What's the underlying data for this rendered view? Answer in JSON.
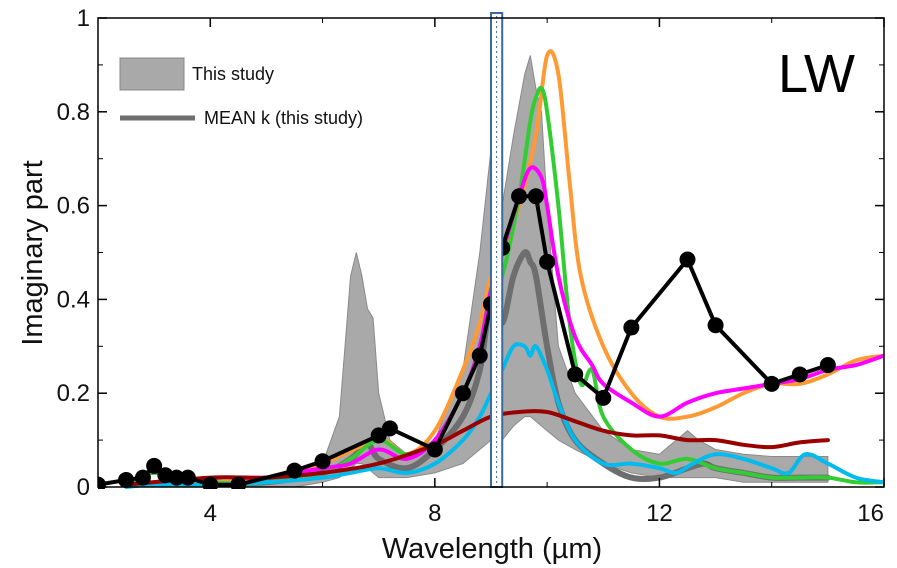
{
  "chart_data": {
    "type": "line",
    "corner_label": "LW",
    "xlabel": "Wavelength (µm)",
    "ylabel": "Imaginary part",
    "xlim": [
      2,
      16
    ],
    "ylim": [
      0,
      1
    ],
    "x_ticks": [
      4,
      8,
      12,
      16
    ],
    "y_ticks": [
      0,
      0.2,
      0.4,
      0.6,
      0.8,
      1
    ],
    "y_tick_labels": [
      "0",
      "0.2",
      "0.4",
      "0.6",
      "0.8",
      "1"
    ],
    "grid": false,
    "legend_position": "top-left",
    "legend": [
      {
        "label": "This study",
        "kind": "band",
        "color": "#a9a9a9"
      },
      {
        "label": "MEAN k (this study)",
        "kind": "line",
        "color": "#6e6e6e"
      }
    ],
    "highlight_band": {
      "x": [
        9.0,
        9.2
      ],
      "color": "#3d6a9e"
    },
    "range_band": {
      "name": "This study",
      "color": "#a9a9a9",
      "x": [
        2.5,
        3,
        4,
        5,
        5.5,
        6,
        6.3,
        6.5,
        6.6,
        6.7,
        6.8,
        6.9,
        7,
        7.2,
        7.5,
        8,
        8.5,
        8.8,
        9,
        9.2,
        9.4,
        9.6,
        9.7,
        9.8,
        9.9,
        10,
        10.2,
        10.5,
        11,
        11.5,
        12,
        12.5,
        12.7,
        13,
        13.5,
        14,
        14.5,
        15
      ],
      "upper": [
        0.005,
        0.01,
        0.01,
        0.015,
        0.02,
        0.05,
        0.15,
        0.45,
        0.5,
        0.45,
        0.38,
        0.36,
        0.2,
        0.1,
        0.07,
        0.1,
        0.25,
        0.5,
        0.72,
        0.6,
        0.75,
        0.88,
        0.92,
        0.85,
        0.8,
        0.6,
        0.3,
        0.2,
        0.12,
        0.08,
        0.07,
        0.12,
        0.1,
        0.08,
        0.07,
        0.065,
        0.065,
        0.065
      ],
      "lower": [
        0,
        0,
        0,
        0,
        0,
        0.01,
        0.02,
        0.04,
        0.05,
        0.05,
        0.04,
        0.03,
        0.02,
        0.02,
        0.02,
        0.03,
        0.05,
        0.08,
        0.1,
        0.1,
        0.13,
        0.15,
        0.15,
        0.14,
        0.13,
        0.12,
        0.1,
        0.08,
        0.05,
        0.03,
        0.02,
        0.02,
        0.02,
        0.02,
        0.01,
        0.01,
        0.01,
        0.01
      ]
    },
    "series": [
      {
        "color": "#6e6e6e",
        "width": 6,
        "x": [
          2.5,
          4,
          5,
          6,
          6.5,
          6.8,
          7,
          7.5,
          8,
          8.5,
          8.8,
          9,
          9.2,
          9.4,
          9.6,
          9.7,
          9.8,
          10,
          10.2,
          10.5,
          11,
          11.5,
          12,
          12.5,
          12.8,
          13,
          13.5,
          14,
          14.5,
          15
        ],
        "y": [
          0.005,
          0.01,
          0.01,
          0.03,
          0.06,
          0.09,
          0.06,
          0.04,
          0.08,
          0.15,
          0.25,
          0.4,
          0.35,
          0.45,
          0.5,
          0.48,
          0.45,
          0.3,
          0.18,
          0.1,
          0.05,
          0.02,
          0.02,
          0.04,
          0.05,
          0.04,
          0.03,
          0.02,
          0.02,
          0.02
        ]
      },
      {
        "color": "#ff9933",
        "width": 4,
        "x": [
          2.5,
          4,
          5,
          6,
          7,
          7.5,
          8,
          8.5,
          8.8,
          9,
          9.2,
          9.5,
          9.8,
          10,
          10.2,
          10.4,
          10.6,
          11,
          11.5,
          12,
          12.5,
          13,
          13.5,
          14,
          14.5,
          15,
          15.5,
          16
        ],
        "y": [
          0.005,
          0.01,
          0.02,
          0.05,
          0.1,
          0.07,
          0.12,
          0.25,
          0.35,
          0.45,
          0.5,
          0.6,
          0.75,
          0.92,
          0.88,
          0.65,
          0.45,
          0.3,
          0.2,
          0.15,
          0.15,
          0.17,
          0.2,
          0.22,
          0.22,
          0.24,
          0.27,
          0.28
        ]
      },
      {
        "color": "#33cc33",
        "width": 4,
        "x": [
          2.5,
          3,
          4,
          5,
          6,
          6.5,
          7,
          7.5,
          8,
          8.5,
          8.8,
          9,
          9.2,
          9.5,
          9.7,
          9.8,
          9.9,
          10,
          10.2,
          10.4,
          10.6,
          10.8,
          11,
          11.5,
          12,
          12.5,
          13,
          13.5,
          14,
          14.5,
          15,
          15.5,
          16
        ],
        "y": [
          0.005,
          0.03,
          0.01,
          0.01,
          0.03,
          0.06,
          0.1,
          0.07,
          0.1,
          0.2,
          0.3,
          0.42,
          0.45,
          0.62,
          0.78,
          0.83,
          0.85,
          0.8,
          0.6,
          0.35,
          0.22,
          0.25,
          0.15,
          0.08,
          0.05,
          0.06,
          0.04,
          0.03,
          0.02,
          0.02,
          0.02,
          0.01,
          0.01
        ]
      },
      {
        "color": "#ff00ff",
        "width": 4,
        "x": [
          4.5,
          5,
          5.5,
          6,
          6.5,
          7,
          7.5,
          8,
          8.5,
          8.8,
          9,
          9.2,
          9.5,
          9.7,
          9.9,
          10,
          10.2,
          10.5,
          10.8,
          11,
          11.5,
          12,
          12.5,
          13,
          13.5,
          14,
          14.5,
          15,
          15.5,
          16
        ],
        "y": [
          0.02,
          0.02,
          0.03,
          0.04,
          0.05,
          0.08,
          0.06,
          0.1,
          0.2,
          0.3,
          0.42,
          0.5,
          0.62,
          0.68,
          0.66,
          0.6,
          0.45,
          0.32,
          0.26,
          0.22,
          0.18,
          0.15,
          0.18,
          0.2,
          0.21,
          0.22,
          0.23,
          0.25,
          0.26,
          0.28
        ]
      },
      {
        "color": "#00bbee",
        "width": 4,
        "x": [
          2.5,
          3,
          4,
          5,
          6,
          6.5,
          7,
          7.5,
          8,
          8.5,
          8.8,
          9,
          9.2,
          9.4,
          9.6,
          9.7,
          9.8,
          10,
          10.2,
          10.5,
          11,
          11.5,
          12,
          12.3,
          12.6,
          13,
          13.5,
          14,
          14.3,
          14.6,
          15,
          15.5,
          16
        ],
        "y": [
          0,
          0.005,
          0.005,
          0.01,
          0.02,
          0.03,
          0.04,
          0.03,
          0.05,
          0.1,
          0.15,
          0.2,
          0.25,
          0.3,
          0.3,
          0.28,
          0.3,
          0.25,
          0.18,
          0.1,
          0.05,
          0.05,
          0.04,
          0.03,
          0.05,
          0.07,
          0.06,
          0.04,
          0.03,
          0.07,
          0.05,
          0.02,
          0.01
        ]
      },
      {
        "color": "#990000",
        "width": 4,
        "x": [
          2.5,
          4,
          5,
          6,
          7,
          8,
          8.5,
          9,
          9.5,
          10,
          10.5,
          11,
          11.5,
          12,
          12.5,
          13,
          13.5,
          14,
          14.5,
          15
        ],
        "y": [
          0.005,
          0.02,
          0.02,
          0.03,
          0.05,
          0.09,
          0.12,
          0.15,
          0.16,
          0.16,
          0.14,
          0.12,
          0.11,
          0.11,
          0.1,
          0.1,
          0.09,
          0.085,
          0.095,
          0.1
        ]
      },
      {
        "color": "#000000",
        "width": 4,
        "markers": true,
        "x": [
          2,
          2.5,
          2.8,
          3,
          3.2,
          3.4,
          3.6,
          4,
          4.5,
          5.5,
          6,
          7,
          7.2,
          8,
          8.5,
          8.8,
          9,
          9.2,
          9.5,
          9.8,
          10,
          10.5,
          11,
          11.5,
          12.5,
          13,
          14,
          14.5,
          15
        ],
        "y": [
          0.005,
          0.015,
          0.02,
          0.045,
          0.025,
          0.02,
          0.02,
          0.005,
          0.005,
          0.035,
          0.055,
          0.11,
          0.125,
          0.08,
          0.2,
          0.28,
          0.39,
          0.51,
          0.62,
          0.62,
          0.48,
          0.24,
          0.19,
          0.34,
          0.485,
          0.345,
          0.22,
          0.24,
          0.26
        ]
      }
    ]
  }
}
